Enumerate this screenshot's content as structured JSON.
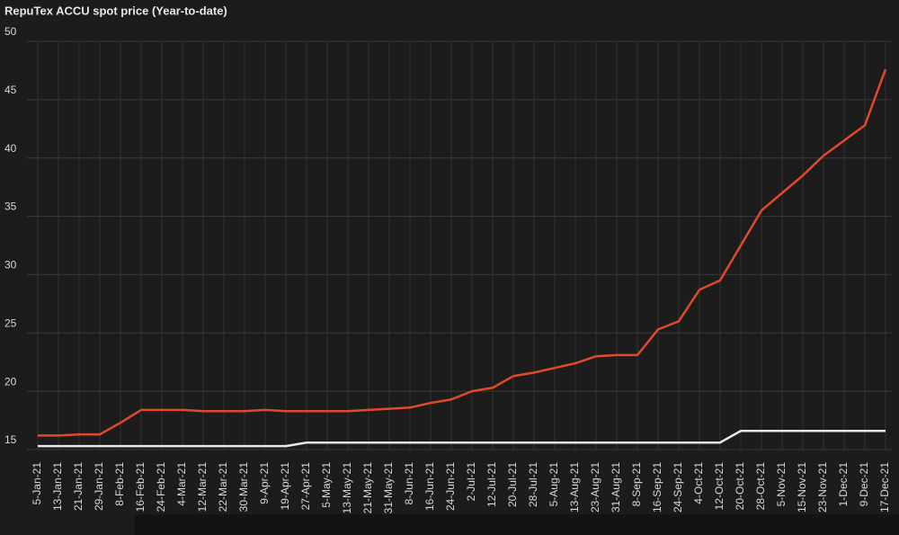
{
  "chart_data": {
    "type": "line",
    "title": "RepuTex ACCU spot price (Year-to-date)",
    "categories": [
      "5-Jan-21",
      "13-Jan-21",
      "21-Jan-21",
      "29-Jan-21",
      "8-Feb-21",
      "16-Feb-21",
      "24-Feb-21",
      "4-Mar-21",
      "12-Mar-21",
      "22-Mar-21",
      "30-Mar-21",
      "9-Apr-21",
      "19-Apr-21",
      "27-Apr-21",
      "5-May-21",
      "13-May-21",
      "21-May-21",
      "31-May-21",
      "8-Jun-21",
      "16-Jun-21",
      "24-Jun-21",
      "2-Jul-21",
      "12-Jul-21",
      "20-Jul-21",
      "28-Jul-21",
      "5-Aug-21",
      "13-Aug-21",
      "23-Aug-21",
      "31-Aug-21",
      "8-Sep-21",
      "16-Sep-21",
      "24-Sep-21",
      "4-Oct-21",
      "12-Oct-21",
      "20-Oct-21",
      "28-Oct-21",
      "5-Nov-21",
      "15-Nov-21",
      "23-Nov-21",
      "1-Dec-21",
      "9-Dec-21",
      "17-Dec-21"
    ],
    "series": [
      {
        "color": "#e0492c",
        "values": [
          16.2,
          16.2,
          16.3,
          16.3,
          17.3,
          18.4,
          18.4,
          18.4,
          18.3,
          18.3,
          18.3,
          18.4,
          18.3,
          18.3,
          18.3,
          18.3,
          18.4,
          18.5,
          18.6,
          19,
          19.3,
          20,
          20.3,
          21.3,
          21.6,
          22,
          22.4,
          23,
          23.1,
          23.1,
          25.3,
          26,
          28.7,
          29.5,
          32.5,
          35.5,
          37,
          38.5,
          40.2,
          41.5,
          42.8,
          47.6
        ]
      },
      {
        "color": "#e8e8e8",
        "values": [
          15.3,
          15.3,
          15.3,
          15.3,
          15.3,
          15.3,
          15.3,
          15.3,
          15.3,
          15.3,
          15.3,
          15.3,
          15.3,
          15.6,
          15.6,
          15.6,
          15.6,
          15.6,
          15.6,
          15.6,
          15.6,
          15.6,
          15.6,
          15.6,
          15.6,
          15.6,
          15.6,
          15.6,
          15.6,
          15.6,
          15.6,
          15.6,
          15.6,
          15.6,
          16.6,
          16.6,
          16.6,
          16.6,
          16.6,
          16.6,
          16.6,
          16.6
        ]
      }
    ],
    "ylim": [
      15,
      50
    ],
    "yticks": [
      15,
      20,
      25,
      30,
      35,
      40,
      45,
      50
    ],
    "grid": true
  }
}
